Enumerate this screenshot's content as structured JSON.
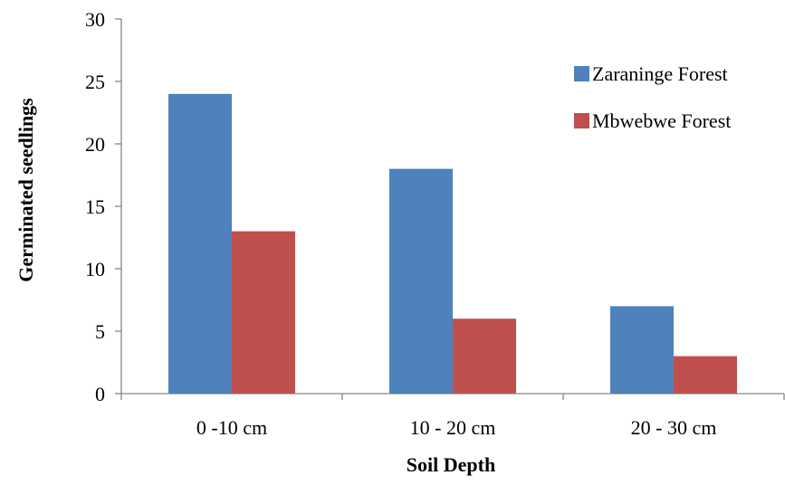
{
  "chart_data": {
    "type": "bar",
    "title": "",
    "xlabel": "Soil Depth",
    "ylabel": "Germinated seedlings",
    "categories": [
      "0 -10 cm",
      "10 - 20 cm",
      "20 - 30 cm"
    ],
    "series": [
      {
        "name": "Zaraninge Forest",
        "values": [
          24,
          18,
          7
        ],
        "color": "#4F81BD"
      },
      {
        "name": "Mbwebwe Forest",
        "values": [
          13,
          6,
          3
        ],
        "color": "#C0504D"
      }
    ],
    "ylim": [
      0,
      30
    ],
    "yticks": [
      "0",
      "5",
      "10",
      "15",
      "20",
      "25",
      "30"
    ],
    "grid": false,
    "legend_position": "right"
  }
}
